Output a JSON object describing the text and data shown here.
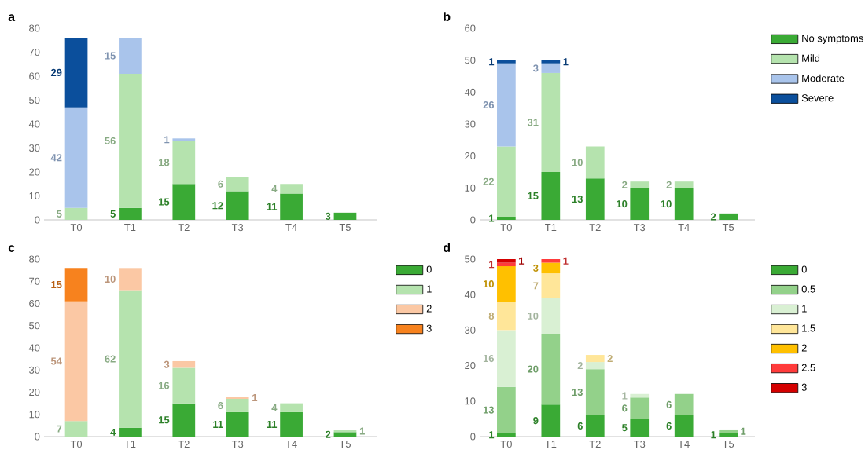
{
  "chart_data": [
    {
      "type": "bar",
      "title": "a",
      "stacked": true,
      "data_labels": true,
      "categories": [
        "T0",
        "T1",
        "T2",
        "T3",
        "T4",
        "T5"
      ],
      "ylim": [
        0,
        80
      ],
      "yticks": [
        0,
        10,
        20,
        30,
        40,
        50,
        60,
        70,
        80
      ],
      "series": [
        {
          "color": "#3aaa35",
          "values": [
            null,
            5,
            15,
            12,
            11,
            3
          ]
        },
        {
          "color": "#b5e3ae",
          "values": [
            5,
            56,
            18,
            6,
            4,
            null
          ]
        },
        {
          "color": "#a9c4eb",
          "values": [
            42,
            15,
            1,
            null,
            null,
            null
          ]
        },
        {
          "color": "#0b4f9c",
          "values": [
            29,
            null,
            null,
            null,
            null,
            null
          ]
        }
      ]
    },
    {
      "type": "bar",
      "title": "b",
      "stacked": true,
      "data_labels": true,
      "legend": "right",
      "categories": [
        "T0",
        "T1",
        "T2",
        "T3",
        "T4",
        "T5"
      ],
      "ylim": [
        0,
        60
      ],
      "yticks": [
        0,
        10,
        20,
        30,
        40,
        50,
        60
      ],
      "series": [
        {
          "name": "No symptoms",
          "color": "#3aaa35",
          "values": [
            1,
            15,
            13,
            10,
            10,
            2
          ]
        },
        {
          "name": "Mild",
          "color": "#b5e3ae",
          "values": [
            22,
            31,
            10,
            2,
            2,
            null
          ]
        },
        {
          "name": "Moderate",
          "color": "#a9c4eb",
          "values": [
            26,
            3,
            null,
            null,
            null,
            null
          ]
        },
        {
          "name": "Severe",
          "color": "#0b4f9c",
          "values": [
            1,
            1,
            null,
            null,
            null,
            null
          ]
        }
      ]
    },
    {
      "type": "bar",
      "title": "c",
      "stacked": true,
      "data_labels": true,
      "legend": "right",
      "categories": [
        "T0",
        "T1",
        "T2",
        "T3",
        "T4",
        "T5"
      ],
      "ylim": [
        0,
        80
      ],
      "yticks": [
        0,
        10,
        20,
        30,
        40,
        50,
        60,
        70,
        80
      ],
      "series": [
        {
          "name": "0",
          "color": "#3aaa35",
          "values": [
            null,
            4,
            15,
            11,
            11,
            2
          ]
        },
        {
          "name": "1",
          "color": "#b5e3ae",
          "values": [
            7,
            62,
            16,
            6,
            4,
            1
          ]
        },
        {
          "name": "2",
          "color": "#fbc8a4",
          "values": [
            54,
            10,
            3,
            1,
            null,
            null
          ]
        },
        {
          "name": "3",
          "color": "#f7821e",
          "values": [
            15,
            null,
            null,
            null,
            null,
            null
          ]
        }
      ]
    },
    {
      "type": "bar",
      "title": "d",
      "stacked": true,
      "data_labels": true,
      "legend": "right",
      "categories": [
        "T0",
        "T1",
        "T2",
        "T3",
        "T4",
        "T5"
      ],
      "ylim": [
        0,
        50
      ],
      "yticks": [
        0,
        10,
        20,
        30,
        40,
        50
      ],
      "series": [
        {
          "name": "0",
          "color": "#3aaa35",
          "values": [
            1,
            9,
            6,
            5,
            6,
            1
          ]
        },
        {
          "name": "0.5",
          "color": "#93d18a",
          "values": [
            13,
            20,
            13,
            6,
            6,
            1
          ]
        },
        {
          "name": "1",
          "color": "#d9f0d3",
          "values": [
            16,
            10,
            2,
            1,
            null,
            null
          ]
        },
        {
          "name": "1.5",
          "color": "#ffe699",
          "values": [
            8,
            7,
            2,
            null,
            null,
            null
          ]
        },
        {
          "name": "2",
          "color": "#ffc000",
          "values": [
            10,
            3,
            null,
            null,
            null,
            null
          ]
        },
        {
          "name": "2.5",
          "color": "#ff3b3b",
          "values": [
            1,
            1,
            null,
            null,
            null,
            null
          ]
        },
        {
          "name": "3",
          "color": "#d40000",
          "values": [
            1,
            null,
            null,
            null,
            null,
            null
          ]
        }
      ]
    }
  ]
}
